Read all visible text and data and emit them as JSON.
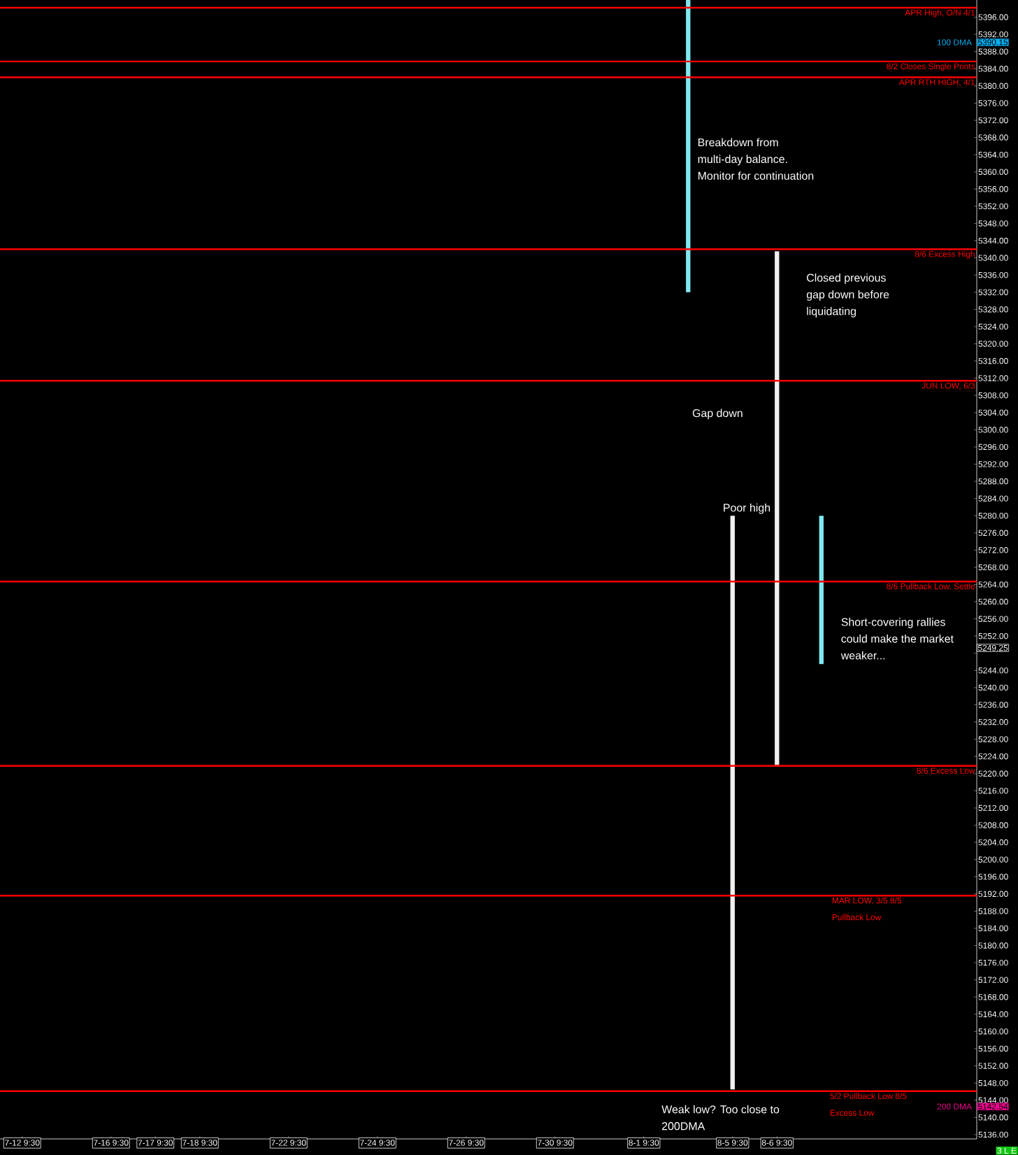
{
  "chart_data": {
    "type": "bar",
    "categories": [
      "7-12 9:30",
      null,
      "7-16 9:30",
      "7-17 9:30",
      "7-18 9:30",
      null,
      "7-22 9:30",
      null,
      "7-24 9:30",
      null,
      "7-26 9:30",
      null,
      "7-30 9:30",
      null,
      "8-1 9:30",
      null,
      "8-5 9:30",
      "8-6 9:30",
      null,
      null,
      null,
      null
    ],
    "base": [
      null,
      null,
      null,
      null,
      null,
      null,
      null,
      null,
      null,
      null,
      null,
      null,
      null,
      null,
      null,
      5332,
      5146.5,
      5222,
      5245.5,
      null,
      null,
      null
    ],
    "values": [
      null,
      null,
      null,
      null,
      null,
      null,
      null,
      null,
      null,
      null,
      null,
      null,
      null,
      null,
      null,
      68,
      133.5,
      119.5,
      34.5,
      null,
      null,
      null
    ],
    "colors": [
      null,
      null,
      null,
      null,
      null,
      null,
      null,
      null,
      null,
      null,
      null,
      null,
      null,
      null,
      null,
      "#7fe8f0",
      "#f0f0f0",
      "#f0f0f0",
      "#7fe8f0",
      null,
      null,
      null
    ],
    "ylim": [
      5135,
      5400
    ],
    "yticks": [
      {
        "value": 5136,
        "label": "5136.00"
      },
      {
        "value": 5140,
        "label": "5140.00"
      },
      {
        "value": 5144,
        "label": "5144.00"
      },
      {
        "value": 5148,
        "label": "5148.00"
      },
      {
        "value": 5152,
        "label": "5152.00"
      },
      {
        "value": 5156,
        "label": "5156.00"
      },
      {
        "value": 5160,
        "label": "5160.00"
      },
      {
        "value": 5164,
        "label": "5164.00"
      },
      {
        "value": 5168,
        "label": "5168.00"
      },
      {
        "value": 5172,
        "label": "5172.00"
      },
      {
        "value": 5176,
        "label": "5176.00"
      },
      {
        "value": 5180,
        "label": "5180.00"
      },
      {
        "value": 5184,
        "label": "5184.00"
      },
      {
        "value": 5188,
        "label": "5188.00"
      },
      {
        "value": 5192,
        "label": "5192.00"
      },
      {
        "value": 5196,
        "label": "5196.00"
      },
      {
        "value": 5200,
        "label": "5200.00"
      },
      {
        "value": 5204,
        "label": "5204.00"
      },
      {
        "value": 5208,
        "label": "5208.00"
      },
      {
        "value": 5212,
        "label": "5212.00"
      },
      {
        "value": 5216,
        "label": "5216.00"
      },
      {
        "value": 5220,
        "label": "5220.00"
      },
      {
        "value": 5224,
        "label": "5224.00"
      },
      {
        "value": 5228,
        "label": "5228.00"
      },
      {
        "value": 5232,
        "label": "5232.00"
      },
      {
        "value": 5236,
        "label": "5236.00"
      },
      {
        "value": 5240,
        "label": "5240.00"
      },
      {
        "value": 5244,
        "label": "5244.00"
      },
      {
        "value": 5248,
        "label": null
      },
      {
        "value": 5252,
        "label": "5252.00"
      },
      {
        "value": 5256,
        "label": "5256.00"
      },
      {
        "value": 5260,
        "label": "5260.00"
      },
      {
        "value": 5264,
        "label": "5264.00"
      },
      {
        "value": 5268,
        "label": "5268.00"
      },
      {
        "value": 5272,
        "label": "5272.00"
      },
      {
        "value": 5276,
        "label": "5276.00"
      },
      {
        "value": 5280,
        "label": "5280.00"
      },
      {
        "value": 5284,
        "label": "5284.00"
      },
      {
        "value": 5288,
        "label": "5288.00"
      },
      {
        "value": 5292,
        "label": "5292.00"
      },
      {
        "value": 5296,
        "label": "5296.00"
      },
      {
        "value": 5300,
        "label": "5300.00"
      },
      {
        "value": 5304,
        "label": "5304.00"
      },
      {
        "value": 5308,
        "label": "5308.00"
      },
      {
        "value": 5312,
        "label": "5312.00"
      },
      {
        "value": 5316,
        "label": "5316.00"
      },
      {
        "value": 5320,
        "label": "5320.00"
      },
      {
        "value": 5324,
        "label": "5324.00"
      },
      {
        "value": 5328,
        "label": "5328.00"
      },
      {
        "value": 5332,
        "label": "5332.00"
      },
      {
        "value": 5336,
        "label": "5336.00"
      },
      {
        "value": 5340,
        "label": "5340.00"
      },
      {
        "value": 5344,
        "label": "5344.00"
      },
      {
        "value": 5348,
        "label": "5348.00"
      },
      {
        "value": 5352,
        "label": "5352.00"
      },
      {
        "value": 5356,
        "label": "5356.00"
      },
      {
        "value": 5360,
        "label": "5360.00"
      },
      {
        "value": 5364,
        "label": "5364.00"
      },
      {
        "value": 5368,
        "label": "5368.00"
      },
      {
        "value": 5372,
        "label": "5372.00"
      },
      {
        "value": 5376,
        "label": "5376.00"
      },
      {
        "value": 5380,
        "label": "5380.00"
      },
      {
        "value": 5384,
        "label": "5384.00"
      },
      {
        "value": 5388,
        "label": "5388.00"
      },
      {
        "value": 5392,
        "label": "5392.00"
      },
      {
        "value": 5396,
        "label": "5396.00"
      }
    ],
    "ref_lines": [
      {
        "axis": "y",
        "value": 5398.2,
        "label": "APR High, O/N 4/1",
        "color": "#ff0000"
      },
      {
        "axis": "y",
        "value": 5385.7,
        "label": "8/2 Closes Single Prints",
        "color": "#ff0000"
      },
      {
        "axis": "y",
        "value": 5382,
        "label": "APR RTH HIGH, 4/1",
        "color": "#ff0000"
      },
      {
        "axis": "y",
        "value": 5342,
        "label": "8/6 Excess High",
        "color": "#ff0000"
      },
      {
        "axis": "y",
        "value": 5311.4,
        "label": "JUN LOW, 6/3",
        "color": "#ff0000"
      },
      {
        "axis": "y",
        "value": 5264.7,
        "label": "8/6 Pullback Low, Settle",
        "color": "#ff0000"
      },
      {
        "axis": "y",
        "value": 5221.8,
        "label": "8/6 Excess Low",
        "color": "#ff0000"
      },
      {
        "axis": "y",
        "value": 5191.6,
        "label": "MAR LOW, 3/5 8/5 Pullback Low",
        "color": "#ff0000"
      },
      {
        "axis": "y",
        "value": 5146.1,
        "label": "5/2 Pullback Low 8/5 Excess Low",
        "color": "#ff0000"
      }
    ],
    "annotations": [
      "Breakdown from multi-day balance. Monitor for continuation",
      "Closed previous gap down before liquidating",
      "Gap down",
      "Poor high",
      "Short-covering rallies could make the market weaker...",
      "Weak low? Too close to 200DMA",
      "100 DMA",
      "5390.15",
      "200 DMA",
      "5142.54",
      "5249.25",
      "3 L E"
    ]
  }
}
